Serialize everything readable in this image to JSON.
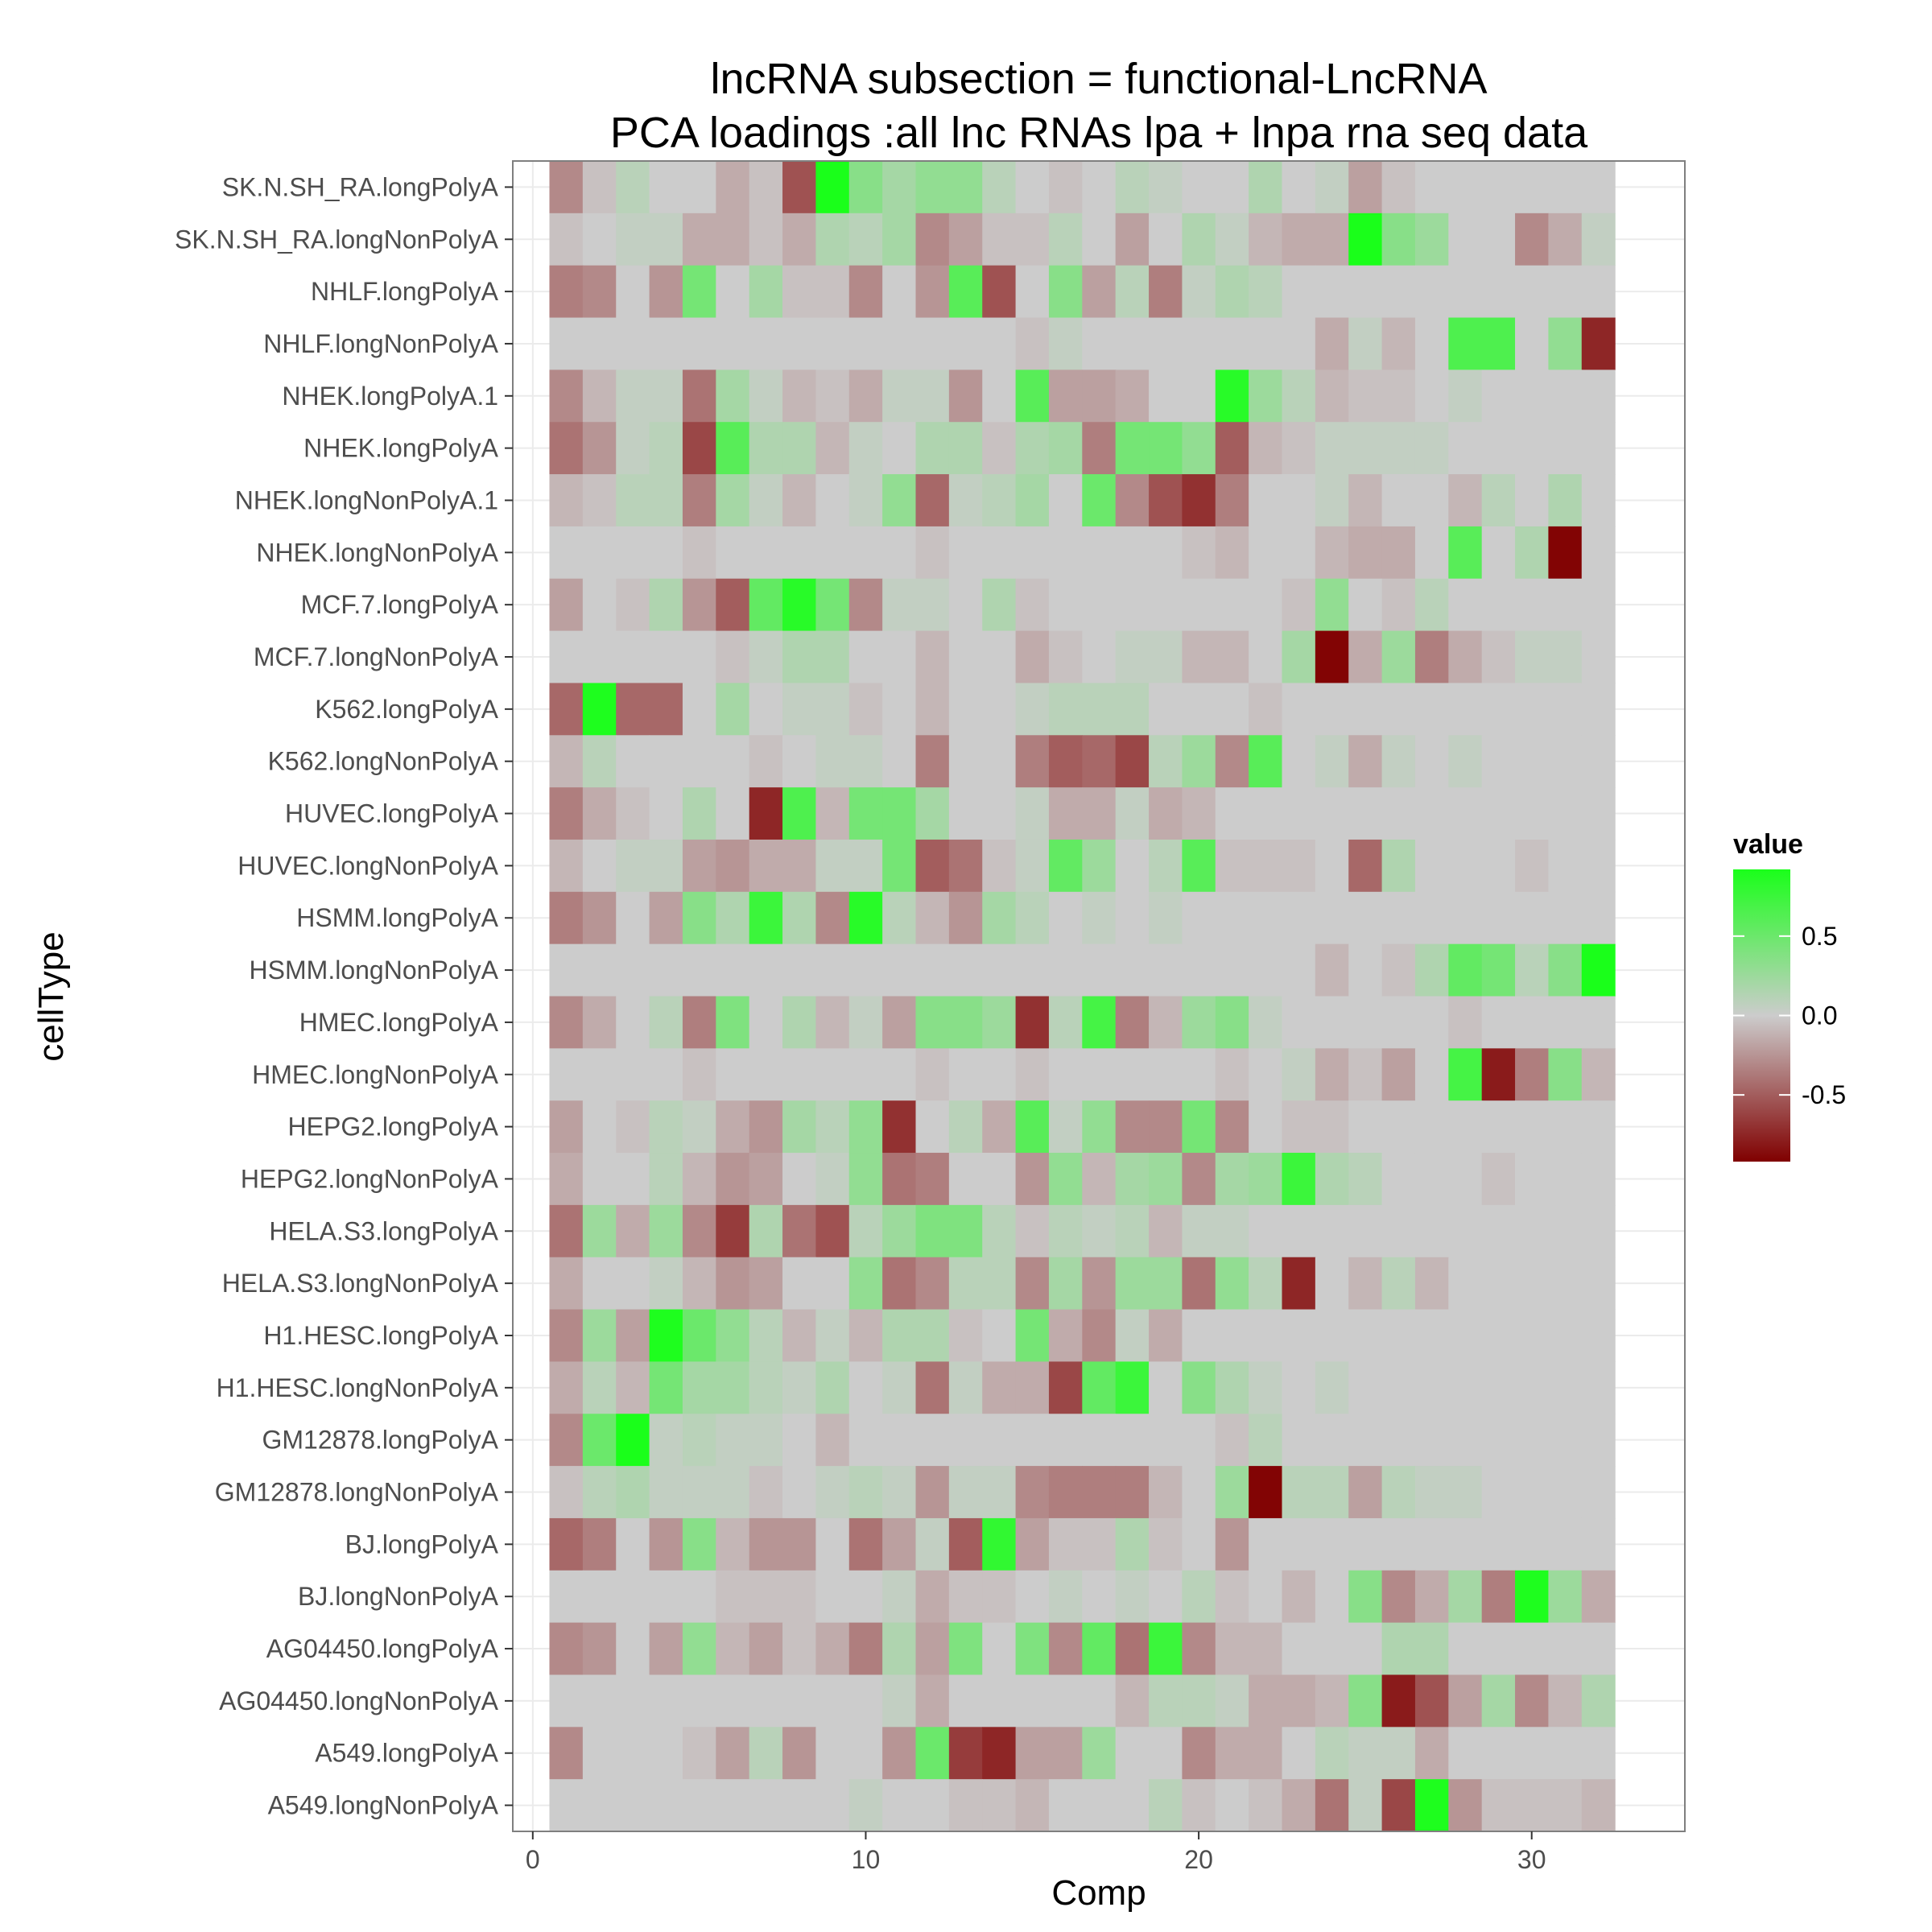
{
  "chart_data": {
    "type": "heatmap",
    "title_lines": [
      "lncRNA subsection =  functional-LncRNA",
      "PCA loadings :all lnc RNAs lpa + lnpa rna seq data"
    ],
    "xlabel": "Comp",
    "ylabel": "cellType",
    "x": [
      1,
      2,
      3,
      4,
      5,
      6,
      7,
      8,
      9,
      10,
      11,
      12,
      13,
      14,
      15,
      16,
      17,
      18,
      19,
      20,
      21,
      22,
      23,
      24,
      25,
      26,
      27,
      28,
      29,
      30,
      31,
      32
    ],
    "xlim": [
      -0.6,
      34.6
    ],
    "x_ticks": [
      0,
      10,
      20,
      30
    ],
    "x_tick_labels": [
      "0",
      "10",
      "20",
      "30"
    ],
    "y_categories": [
      "SK.N.SH_RA.longPolyA",
      "SK.N.SH_RA.longNonPolyA",
      "NHLF.longPolyA",
      "NHLF.longNonPolyA",
      "NHEK.longPolyA.1",
      "NHEK.longPolyA",
      "NHEK.longNonPolyA.1",
      "NHEK.longNonPolyA",
      "MCF.7.longPolyA",
      "MCF.7.longNonPolyA",
      "K562.longPolyA",
      "K562.longNonPolyA",
      "HUVEC.longPolyA",
      "HUVEC.longNonPolyA",
      "HSMM.longPolyA",
      "HSMM.longNonPolyA",
      "HMEC.longPolyA",
      "HMEC.longNonPolyA",
      "HEPG2.longPolyA",
      "HEPG2.longNonPolyA",
      "HELA.S3.longPolyA",
      "HELA.S3.longNonPolyA",
      "H1.HESC.longPolyA",
      "H1.HESC.longNonPolyA",
      "GM12878.longPolyA",
      "GM12878.longNonPolyA",
      "BJ.longPolyA",
      "BJ.longNonPolyA",
      "AG04450.longPolyA",
      "AG04450.longNonPolyA",
      "A549.longPolyA",
      "A549.longNonPolyA"
    ],
    "values": [
      [
        -0.3,
        -0.05,
        0.1,
        0,
        0,
        -0.15,
        -0.05,
        -0.55,
        0.95,
        0.35,
        0.2,
        0.3,
        0.3,
        0.1,
        0,
        -0.05,
        0,
        0.1,
        0.05,
        0,
        0,
        0.15,
        0,
        0.05,
        -0.2,
        -0.05,
        0,
        0,
        0,
        0,
        0,
        0
      ],
      [
        -0.05,
        0,
        0.05,
        0.05,
        -0.15,
        -0.15,
        -0.05,
        -0.15,
        0.15,
        0.1,
        0.2,
        -0.3,
        -0.2,
        -0.05,
        -0.05,
        0.1,
        0,
        -0.2,
        0,
        0.15,
        0.05,
        -0.1,
        -0.15,
        -0.15,
        0.95,
        0.35,
        0.25,
        0,
        0,
        -0.3,
        -0.15,
        0.05
      ],
      [
        -0.35,
        -0.3,
        0,
        -0.25,
        0.45,
        0,
        0.2,
        -0.05,
        -0.05,
        -0.3,
        0,
        -0.25,
        0.6,
        -0.55,
        0,
        0.35,
        -0.2,
        0.1,
        -0.35,
        0.05,
        0.15,
        0.1,
        0,
        0,
        0,
        0,
        0,
        0,
        0,
        0,
        0,
        0
      ],
      [
        0,
        0,
        0,
        0,
        0,
        0,
        0,
        0,
        0,
        0,
        0,
        0,
        0,
        0,
        -0.05,
        0.05,
        0,
        0,
        0,
        0,
        0,
        0,
        0,
        -0.15,
        0.05,
        -0.1,
        0,
        0.65,
        0.65,
        0,
        0.3,
        -0.75
      ],
      [
        -0.3,
        -0.1,
        0.05,
        0.05,
        -0.4,
        0.2,
        0.05,
        -0.1,
        -0.05,
        -0.15,
        0.05,
        0.05,
        -0.25,
        0,
        0.6,
        -0.2,
        -0.2,
        -0.15,
        0,
        0,
        0.85,
        0.25,
        0.1,
        -0.1,
        -0.05,
        -0.05,
        0,
        0.05,
        0,
        0,
        0,
        0
      ],
      [
        -0.4,
        -0.25,
        0.05,
        0.1,
        -0.6,
        0.6,
        0.15,
        0.15,
        -0.1,
        0.05,
        0,
        0.15,
        0.15,
        -0.05,
        0.15,
        0.2,
        -0.35,
        0.45,
        0.45,
        0.3,
        -0.5,
        -0.1,
        -0.05,
        0.05,
        0.05,
        0.05,
        0.05,
        0,
        0,
        0,
        0,
        0
      ],
      [
        -0.1,
        -0.05,
        0.1,
        0.1,
        -0.35,
        0.2,
        0.05,
        -0.1,
        0,
        0.05,
        0.3,
        -0.45,
        0.05,
        0.1,
        0.2,
        0,
        0.5,
        -0.3,
        -0.55,
        -0.7,
        -0.35,
        0,
        0,
        0.05,
        -0.1,
        0,
        0,
        -0.1,
        0.1,
        0,
        0.15,
        0
      ],
      [
        0,
        0,
        0,
        0,
        -0.05,
        0,
        0,
        0,
        0,
        0,
        0,
        -0.05,
        0,
        0,
        0,
        0,
        0,
        0,
        0,
        -0.05,
        -0.1,
        0,
        0,
        -0.1,
        -0.15,
        -0.15,
        0,
        0.6,
        0,
        0.15,
        -0.9,
        0
      ],
      [
        -0.2,
        0,
        -0.05,
        0.15,
        -0.25,
        -0.5,
        0.55,
        0.85,
        0.45,
        -0.3,
        0.05,
        0.05,
        0,
        0.15,
        -0.05,
        0,
        0,
        0,
        0,
        0,
        0,
        0,
        -0.05,
        0.3,
        0,
        -0.05,
        0.1,
        0,
        0,
        0,
        0,
        0
      ],
      [
        0,
        0,
        0,
        0,
        0,
        -0.05,
        0.05,
        0.15,
        0.15,
        0,
        0,
        -0.1,
        0,
        0,
        -0.15,
        -0.05,
        0,
        0.05,
        0.05,
        -0.1,
        -0.1,
        0,
        0.2,
        -0.9,
        -0.15,
        0.25,
        -0.35,
        -0.15,
        -0.05,
        0.05,
        0.05,
        0
      ],
      [
        -0.45,
        0.9,
        -0.45,
        -0.45,
        0,
        0.2,
        0,
        0.05,
        0.05,
        -0.05,
        0,
        -0.1,
        0,
        0,
        0.05,
        0.1,
        0.1,
        0.1,
        0,
        0,
        0,
        -0.05,
        0,
        0,
        0,
        0,
        0,
        0,
        0,
        0,
        0,
        0
      ],
      [
        -0.1,
        0.1,
        0,
        0,
        0,
        0,
        -0.05,
        0,
        0.05,
        0.05,
        0,
        -0.35,
        0,
        0,
        -0.35,
        -0.5,
        -0.45,
        -0.6,
        0.1,
        0.25,
        -0.3,
        0.6,
        0,
        0.05,
        -0.15,
        0.05,
        0,
        0.05,
        0,
        0,
        0,
        0
      ],
      [
        -0.35,
        -0.15,
        -0.05,
        0,
        0.15,
        0,
        -0.75,
        0.65,
        -0.1,
        0.45,
        0.45,
        0.2,
        0,
        0,
        0.05,
        -0.15,
        -0.15,
        0.05,
        -0.15,
        -0.1,
        0,
        0,
        0,
        0,
        0,
        0,
        0,
        0,
        0,
        0,
        0,
        0
      ],
      [
        -0.1,
        0,
        0.05,
        0.05,
        -0.2,
        -0.25,
        -0.15,
        -0.15,
        0.05,
        0.05,
        0.45,
        -0.5,
        -0.4,
        -0.05,
        0.05,
        0.55,
        0.25,
        0,
        0.1,
        0.6,
        -0.05,
        -0.05,
        -0.05,
        0,
        -0.45,
        0.15,
        0,
        0,
        0,
        -0.05,
        0,
        0
      ],
      [
        -0.35,
        -0.25,
        0,
        -0.2,
        0.35,
        0.15,
        0.75,
        0.15,
        -0.3,
        0.85,
        0.1,
        -0.1,
        -0.25,
        0.2,
        0.1,
        0,
        0.05,
        0,
        0.05,
        0,
        0,
        0,
        0,
        0,
        0,
        0,
        0,
        0,
        0,
        0,
        0,
        0
      ],
      [
        0,
        0,
        0,
        0,
        0,
        0,
        0,
        0,
        0,
        0,
        0,
        0,
        0,
        0,
        0,
        0,
        0,
        0,
        0,
        0,
        0,
        0,
        0,
        -0.1,
        0,
        -0.05,
        0.15,
        0.55,
        0.45,
        0.1,
        0.35,
        0.95
      ],
      [
        -0.3,
        -0.15,
        0,
        0.1,
        -0.35,
        0.4,
        0,
        0.15,
        -0.1,
        0.05,
        -0.2,
        0.35,
        0.35,
        0.25,
        -0.7,
        0.1,
        0.7,
        -0.35,
        -0.1,
        0.25,
        0.35,
        0.05,
        0,
        0,
        0,
        0,
        0,
        -0.05,
        0,
        0,
        0,
        0
      ],
      [
        0,
        0,
        0,
        0,
        -0.05,
        0,
        0,
        0,
        0,
        0,
        0,
        -0.05,
        0,
        0,
        -0.05,
        0,
        0,
        0,
        0,
        0,
        -0.05,
        0,
        0.05,
        -0.15,
        -0.05,
        -0.2,
        0,
        0.7,
        -0.8,
        -0.35,
        0.35,
        -0.1
      ],
      [
        -0.2,
        0,
        -0.05,
        0.1,
        0.05,
        -0.15,
        -0.25,
        0.2,
        0.1,
        0.3,
        -0.7,
        0,
        0.1,
        -0.15,
        0.6,
        0.05,
        0.3,
        -0.3,
        -0.3,
        0.45,
        -0.3,
        0,
        -0.05,
        -0.05,
        0,
        0,
        0,
        0,
        0,
        0,
        0,
        0
      ],
      [
        -0.15,
        0,
        0,
        0.1,
        -0.1,
        -0.25,
        -0.2,
        0,
        0.05,
        0.3,
        -0.4,
        -0.35,
        0,
        0,
        -0.25,
        0.3,
        -0.1,
        0.2,
        0.25,
        -0.3,
        0.2,
        0.25,
        0.75,
        0.15,
        0.1,
        0,
        0,
        0,
        -0.05,
        0,
        0,
        0
      ],
      [
        -0.4,
        0.25,
        -0.15,
        0.25,
        -0.3,
        -0.65,
        0.15,
        -0.4,
        -0.55,
        0.1,
        0.25,
        0.4,
        0.4,
        0.1,
        -0.05,
        0.1,
        0.05,
        0.1,
        -0.1,
        0.05,
        0.05,
        0,
        0,
        0,
        0,
        0,
        0,
        0,
        0,
        0,
        0,
        0
      ],
      [
        -0.15,
        0,
        0,
        0.05,
        -0.1,
        -0.25,
        -0.2,
        0,
        0,
        0.3,
        -0.4,
        -0.3,
        0.1,
        0.1,
        -0.3,
        0.2,
        -0.25,
        0.25,
        0.25,
        -0.4,
        0.3,
        0.1,
        -0.75,
        0,
        -0.1,
        0.1,
        -0.1,
        0,
        0,
        0,
        0,
        0
      ],
      [
        -0.3,
        0.25,
        -0.2,
        0.9,
        0.5,
        0.3,
        0.1,
        -0.1,
        0.05,
        -0.1,
        0.15,
        0.15,
        -0.05,
        0,
        0.45,
        -0.15,
        -0.3,
        0.05,
        -0.15,
        0,
        0,
        0,
        0,
        0,
        0,
        0,
        0,
        0,
        0,
        0,
        0,
        0
      ],
      [
        -0.15,
        0.1,
        -0.1,
        0.45,
        0.2,
        0.2,
        0.1,
        0.05,
        0.15,
        0,
        0.05,
        -0.4,
        0.05,
        -0.15,
        -0.15,
        -0.6,
        0.55,
        0.75,
        0,
        0.35,
        0.15,
        0.05,
        0,
        0.05,
        0,
        0,
        0,
        0,
        0,
        0,
        0,
        0
      ],
      [
        -0.3,
        0.5,
        0.95,
        0.05,
        0.1,
        0.05,
        0.05,
        0,
        -0.1,
        0,
        0,
        0,
        0,
        0,
        0,
        0,
        0,
        0,
        0,
        0,
        -0.05,
        0.1,
        0,
        0,
        0,
        0,
        0,
        0,
        0,
        0,
        0,
        0
      ],
      [
        -0.05,
        0.1,
        0.15,
        0.05,
        0.05,
        0.05,
        -0.05,
        0,
        0.05,
        0.1,
        0.05,
        -0.25,
        0.05,
        0.05,
        -0.3,
        -0.35,
        -0.35,
        -0.35,
        -0.1,
        0,
        0.25,
        -0.9,
        0.1,
        0.1,
        -0.2,
        0.1,
        0.05,
        0.05,
        0,
        0,
        0,
        0
      ],
      [
        -0.45,
        -0.35,
        0,
        -0.25,
        0.35,
        -0.1,
        -0.25,
        -0.25,
        0,
        -0.4,
        -0.2,
        0.05,
        -0.5,
        0.8,
        -0.2,
        -0.05,
        -0.05,
        0.15,
        -0.05,
        0,
        -0.25,
        0,
        0,
        0,
        0,
        0,
        0,
        0,
        0,
        0,
        0,
        0
      ],
      [
        0,
        0,
        0,
        0,
        0,
        -0.05,
        -0.05,
        -0.05,
        0,
        0,
        0.05,
        -0.15,
        -0.05,
        -0.05,
        0,
        0.05,
        0,
        0.05,
        0,
        0.1,
        -0.05,
        0,
        -0.1,
        0,
        0.35,
        -0.3,
        -0.15,
        0.2,
        -0.35,
        0.9,
        0.25,
        -0.15
      ],
      [
        -0.3,
        -0.25,
        0,
        -0.2,
        0.3,
        -0.1,
        -0.2,
        -0.05,
        -0.15,
        -0.35,
        0.15,
        -0.2,
        0.4,
        0,
        0.4,
        -0.3,
        0.55,
        -0.4,
        0.75,
        -0.3,
        -0.1,
        -0.1,
        0,
        0,
        0,
        0.15,
        0.15,
        0,
        0,
        0,
        0,
        0
      ],
      [
        0,
        0,
        0,
        0,
        0,
        0,
        0,
        0,
        0,
        0,
        0.05,
        -0.15,
        0,
        0,
        0,
        0,
        0,
        -0.1,
        0.1,
        0.1,
        0.05,
        -0.15,
        -0.15,
        -0.1,
        0.35,
        -0.8,
        -0.55,
        -0.2,
        0.2,
        -0.3,
        -0.1,
        0.15
      ],
      [
        -0.3,
        0,
        0,
        0,
        -0.05,
        -0.2,
        0.1,
        -0.25,
        0,
        0,
        -0.25,
        0.5,
        -0.65,
        -0.75,
        -0.2,
        -0.2,
        0.25,
        0,
        0,
        -0.3,
        -0.15,
        -0.15,
        0,
        0.1,
        0.05,
        0.05,
        -0.15,
        0,
        0,
        0,
        0,
        0
      ],
      [
        0,
        0,
        0,
        0,
        0,
        0,
        0,
        0,
        0,
        0.05,
        0,
        0,
        -0.05,
        -0.05,
        -0.1,
        0,
        0,
        0,
        0.1,
        -0.05,
        0,
        -0.05,
        -0.15,
        -0.4,
        0.05,
        -0.6,
        0.9,
        -0.25,
        -0.05,
        -0.05,
        -0.05,
        -0.1
      ]
    ],
    "color_scale": {
      "low": "#800000",
      "mid": "#cccccc",
      "high": "#1aff1a",
      "limits": [
        -0.92,
        0.92
      ]
    },
    "legend": {
      "title": "value",
      "placement": "right",
      "ticks": [
        0.5,
        0.0,
        -0.5
      ],
      "tick_labels": [
        "0.5",
        "0.0",
        "-0.5"
      ]
    },
    "grid": true,
    "panel_background": "#ffffff",
    "grid_color": "#ebebeb"
  }
}
